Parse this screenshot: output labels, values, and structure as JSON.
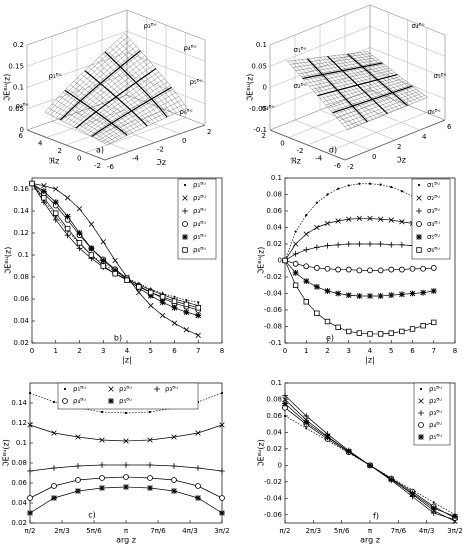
{
  "chart_data": [
    {
      "type": "surface3d",
      "panel_label": "a)",
      "xlabel": "ℜz",
      "ylabel": "ℑz",
      "zlabel": "ℑEᴮᵘ(z)",
      "xlim": [
        -2,
        6
      ],
      "xticks": [
        -2,
        0,
        2,
        4,
        6
      ],
      "ylim": [
        -6,
        2
      ],
      "yticks": [
        -6,
        -4,
        -2,
        0,
        2
      ],
      "zlim": [
        0,
        0.2
      ],
      "zticks": [
        0,
        0.05,
        0.1,
        0.15,
        0.2
      ],
      "annotations": [
        "ρ₁ᴮᵘ",
        "ρ₂ᴮᵘ",
        "ρ₃ᴮᵘ",
        "ρ₄ᴮᵘ",
        "ρ₅ᴮᵘ",
        "ρ₆ᴮᵘ"
      ]
    },
    {
      "type": "surface3d",
      "panel_label": "d)",
      "xlabel": "ℜz",
      "ylabel": "ℑz",
      "zlabel": "ℑEᴮᵘ(z)",
      "xlim": [
        -6,
        2
      ],
      "xticks": [
        -6,
        -4,
        -2,
        0,
        2
      ],
      "ylim": [
        -2,
        6
      ],
      "yticks": [
        -2,
        0,
        2,
        4,
        6
      ],
      "zlim": [
        -0.1,
        0.1
      ],
      "zticks": [
        -0.1,
        -0.05,
        0,
        0.05,
        0.1
      ],
      "annotations": [
        "σ₁ᴮᵘ",
        "σ₂ᴮᵘ",
        "σ₃ᴮᵘ",
        "σ₄ᴮᵘ",
        "σ₅ᴮᵘ",
        "σ₆ᴮᵘ"
      ]
    },
    {
      "type": "line",
      "panel_label": "b)",
      "xlabel": "|z|",
      "ylabel": "ℑEᴮᵘ(z)",
      "xlim": [
        0,
        8
      ],
      "xticks": [
        0,
        1,
        2,
        3,
        4,
        5,
        6,
        7,
        8
      ],
      "ylim": [
        0.02,
        0.17
      ],
      "yticks": [
        0.02,
        0.04,
        0.06,
        0.08,
        0.1,
        0.12,
        0.14,
        0.16
      ],
      "x": [
        0,
        0.5,
        1,
        1.5,
        2,
        2.5,
        3,
        3.5,
        4,
        4.5,
        5,
        5.5,
        6,
        6.5,
        7
      ],
      "series": [
        {
          "name": "ρ₁ᴮᵘ",
          "marker": "dot",
          "color": "#000",
          "values": [
            0.165,
            0.15,
            0.135,
            0.122,
            0.11,
            0.1,
            0.092,
            0.085,
            0.079,
            0.074,
            0.069,
            0.065,
            0.062,
            0.059,
            0.057
          ]
        },
        {
          "name": "ρ₂ᴮᵘ",
          "marker": "x",
          "color": "#000",
          "values": [
            0.165,
            0.163,
            0.16,
            0.152,
            0.142,
            0.128,
            0.112,
            0.095,
            0.08,
            0.066,
            0.054,
            0.045,
            0.038,
            0.032,
            0.027
          ]
        },
        {
          "name": "ρ₃ᴮᵘ",
          "marker": "plus",
          "color": "#000",
          "values": [
            0.165,
            0.148,
            0.132,
            0.118,
            0.106,
            0.097,
            0.089,
            0.083,
            0.078,
            0.073,
            0.068,
            0.064,
            0.06,
            0.057,
            0.054
          ]
        },
        {
          "name": "ρ₄ᴮᵘ",
          "marker": "circle",
          "color": "#000",
          "values": [
            0.165,
            0.156,
            0.145,
            0.132,
            0.118,
            0.106,
            0.096,
            0.087,
            0.079,
            0.072,
            0.066,
            0.061,
            0.056,
            0.053,
            0.05
          ]
        },
        {
          "name": "ρ₅ᴮᵘ",
          "marker": "star",
          "color": "#000",
          "values": [
            0.165,
            0.158,
            0.148,
            0.135,
            0.12,
            0.106,
            0.095,
            0.086,
            0.078,
            0.07,
            0.063,
            0.057,
            0.052,
            0.048,
            0.045
          ]
        },
        {
          "name": "ρ₆ᴮᵘ",
          "marker": "square",
          "color": "#000",
          "values": [
            0.165,
            0.152,
            0.138,
            0.124,
            0.111,
            0.1,
            0.09,
            0.083,
            0.077,
            0.071,
            0.066,
            0.062,
            0.058,
            0.055,
            0.052
          ]
        }
      ]
    },
    {
      "type": "line",
      "panel_label": "e)",
      "xlabel": "|z|",
      "ylabel": "ℑEᴮᵘ(z)",
      "xlim": [
        0,
        8
      ],
      "xticks": [
        0,
        1,
        2,
        3,
        4,
        5,
        6,
        7,
        8
      ],
      "ylim": [
        -0.1,
        0.1
      ],
      "yticks": [
        -0.1,
        -0.08,
        -0.06,
        -0.04,
        -0.02,
        0,
        0.02,
        0.04,
        0.06,
        0.08,
        0.1
      ],
      "x": [
        0,
        0.5,
        1,
        1.5,
        2,
        2.5,
        3,
        3.5,
        4,
        4.5,
        5,
        5.5,
        6,
        6.5,
        7
      ],
      "series": [
        {
          "name": "σ₁ᴮᵘ",
          "marker": "dot",
          "color": "#000",
          "values": [
            0,
            0.035,
            0.055,
            0.07,
            0.08,
            0.087,
            0.091,
            0.093,
            0.093,
            0.092,
            0.089,
            0.084,
            0.078,
            0.07,
            0.062
          ]
        },
        {
          "name": "σ₂ᴮᵘ",
          "marker": "x",
          "color": "#000",
          "values": [
            0,
            0.02,
            0.032,
            0.04,
            0.045,
            0.048,
            0.05,
            0.051,
            0.051,
            0.05,
            0.049,
            0.047,
            0.045,
            0.043,
            0.04
          ]
        },
        {
          "name": "σ₃ᴮᵘ",
          "marker": "plus",
          "color": "#000",
          "values": [
            0,
            0.008,
            0.013,
            0.016,
            0.018,
            0.019,
            0.02,
            0.02,
            0.02,
            0.02,
            0.019,
            0.019,
            0.018,
            0.018,
            0.017
          ]
        },
        {
          "name": "σ₄ᴮᵘ",
          "marker": "circle",
          "color": "#000",
          "values": [
            0,
            -0.004,
            -0.007,
            -0.009,
            -0.01,
            -0.011,
            -0.011,
            -0.012,
            -0.012,
            -0.012,
            -0.011,
            -0.011,
            -0.01,
            -0.01,
            -0.009
          ]
        },
        {
          "name": "σ₅ᴮᵘ",
          "marker": "star",
          "color": "#000",
          "values": [
            0,
            -0.015,
            -0.025,
            -0.032,
            -0.037,
            -0.04,
            -0.042,
            -0.043,
            -0.043,
            -0.043,
            -0.042,
            -0.041,
            -0.04,
            -0.039,
            -0.037
          ]
        },
        {
          "name": "σ₆ᴮᵘ",
          "marker": "square",
          "color": "#000",
          "values": [
            0,
            -0.03,
            -0.05,
            -0.064,
            -0.074,
            -0.081,
            -0.086,
            -0.088,
            -0.089,
            -0.089,
            -0.088,
            -0.086,
            -0.083,
            -0.079,
            -0.075
          ]
        }
      ]
    },
    {
      "type": "line",
      "panel_label": "c)",
      "xlabel": "arg z",
      "ylabel": "ℑEᴮᵘ(z)",
      "xlim": [
        1.5708,
        4.7124
      ],
      "xticks": [
        {
          "value": 1.5708,
          "label": "π/2"
        },
        {
          "value": 2.0944,
          "label": "2π/3"
        },
        {
          "value": 2.618,
          "label": "5π/6"
        },
        {
          "value": 3.1416,
          "label": "π"
        },
        {
          "value": 3.6652,
          "label": "7π/6"
        },
        {
          "value": 4.1888,
          "label": "4π/3"
        },
        {
          "value": 4.7124,
          "label": "3π/2"
        }
      ],
      "ylim": [
        0.02,
        0.16
      ],
      "yticks": [
        0.02,
        0.04,
        0.06,
        0.08,
        0.1,
        0.12,
        0.14
      ],
      "x": [
        1.5708,
        1.9635,
        2.3562,
        2.7489,
        3.1416,
        3.5343,
        3.927,
        4.3197,
        4.7124
      ],
      "series": [
        {
          "name": "ρ₁ᴮᵘ",
          "marker": "dot",
          "color": "#000",
          "values": [
            0.15,
            0.141,
            0.135,
            0.131,
            0.13,
            0.131,
            0.135,
            0.141,
            0.15
          ]
        },
        {
          "name": "ρ₂ᴮᵘ",
          "marker": "x",
          "color": "#000",
          "values": [
            0.118,
            0.11,
            0.106,
            0.103,
            0.102,
            0.103,
            0.106,
            0.11,
            0.118
          ]
        },
        {
          "name": "ρ₃ᴮᵘ",
          "marker": "plus",
          "color": "#000",
          "values": [
            0.072,
            0.075,
            0.077,
            0.078,
            0.078,
            0.078,
            0.077,
            0.075,
            0.072
          ]
        },
        {
          "name": "ρ₄ᴮᵘ",
          "marker": "circle",
          "color": "#000",
          "values": [
            0.045,
            0.057,
            0.063,
            0.065,
            0.066,
            0.065,
            0.063,
            0.057,
            0.045
          ]
        },
        {
          "name": "ρ₅ᴮᵘ",
          "marker": "star",
          "color": "#000",
          "values": [
            0.03,
            0.045,
            0.052,
            0.055,
            0.056,
            0.055,
            0.052,
            0.045,
            0.03
          ]
        }
      ]
    },
    {
      "type": "line",
      "panel_label": "f)",
      "xlabel": "arg z",
      "ylabel": "ℑEᴮᵘ(z)",
      "xlim": [
        1.5708,
        4.7124
      ],
      "xticks": [
        {
          "value": 1.5708,
          "label": "π/2"
        },
        {
          "value": 2.0944,
          "label": "2π/3"
        },
        {
          "value": 2.618,
          "label": "5π/6"
        },
        {
          "value": 3.1416,
          "label": "π"
        },
        {
          "value": 3.6652,
          "label": "7π/6"
        },
        {
          "value": 4.1888,
          "label": "4π/3"
        },
        {
          "value": 4.7124,
          "label": "3π/2"
        }
      ],
      "ylim": [
        -0.07,
        0.1
      ],
      "yticks": [
        -0.06,
        -0.04,
        -0.02,
        0,
        0.02,
        0.04,
        0.06,
        0.08,
        0.1
      ],
      "x": [
        1.5708,
        1.9635,
        2.3562,
        2.7489,
        3.1416,
        3.5343,
        3.927,
        4.3197,
        4.7124
      ],
      "series": [
        {
          "name": "ρ₁ᴮᵘ",
          "marker": "dot",
          "color": "#000",
          "values": [
            0.06,
            0.045,
            0.03,
            0.015,
            0,
            -0.015,
            -0.03,
            -0.045,
            -0.06
          ]
        },
        {
          "name": "ρ₂ᴮᵘ",
          "marker": "x",
          "color": "#000",
          "values": [
            0.08,
            0.055,
            0.035,
            0.017,
            0,
            -0.017,
            -0.035,
            -0.055,
            -0.068
          ]
        },
        {
          "name": "ρ₃ᴮᵘ",
          "marker": "plus",
          "color": "#000",
          "values": [
            0.085,
            0.06,
            0.038,
            0.018,
            0,
            -0.018,
            -0.038,
            -0.058,
            -0.066
          ]
        },
        {
          "name": "ρ₄ᴮᵘ",
          "marker": "circle",
          "color": "#000",
          "values": [
            0.07,
            0.05,
            0.032,
            0.016,
            0,
            -0.016,
            -0.032,
            -0.05,
            -0.064
          ]
        },
        {
          "name": "ρ₅ᴮᵘ",
          "marker": "star",
          "color": "#000",
          "values": [
            0.075,
            0.052,
            0.034,
            0.017,
            0,
            -0.017,
            -0.034,
            -0.052,
            -0.062
          ]
        }
      ]
    }
  ]
}
